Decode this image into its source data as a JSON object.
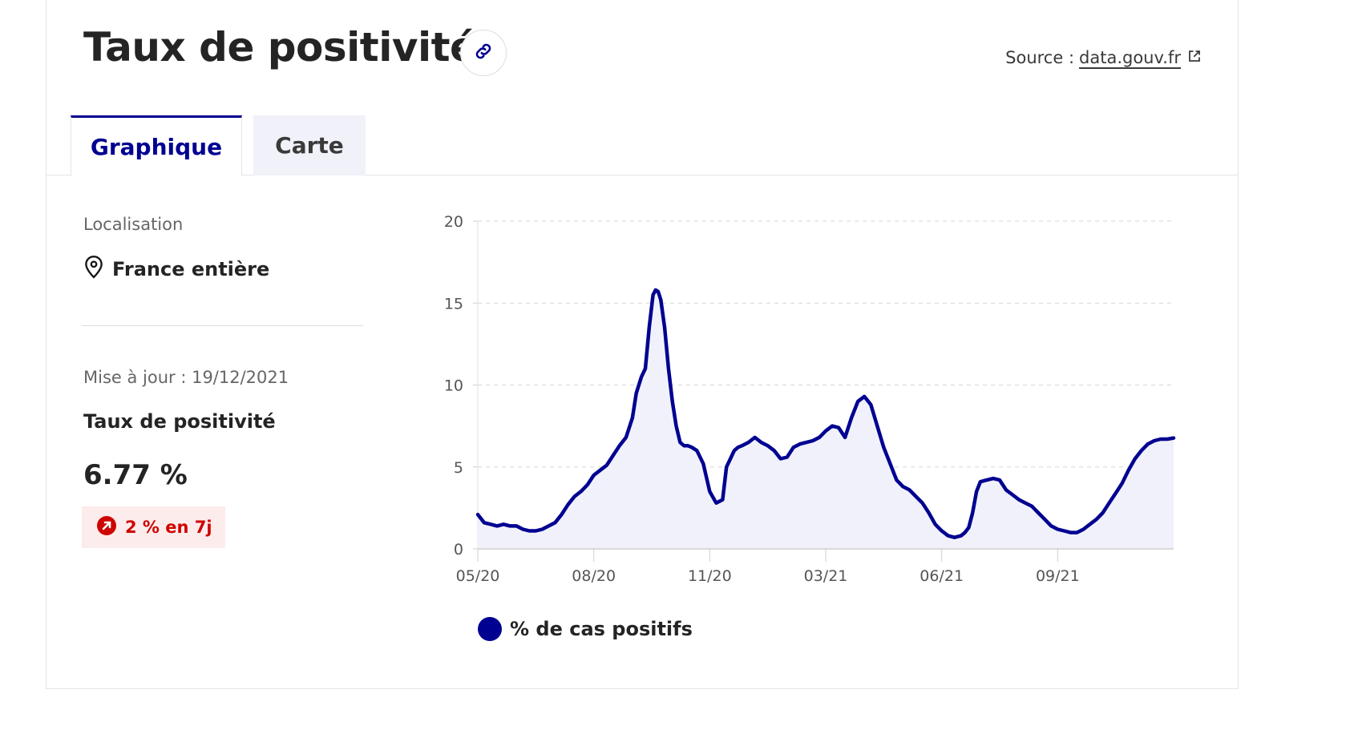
{
  "header": {
    "title": "Taux de positivité",
    "source_label": "Source :",
    "source_link": "data.gouv.fr",
    "link_icon": "link-icon",
    "external_icon": "external-link-icon"
  },
  "tabs": [
    {
      "label": "Graphique",
      "active": true
    },
    {
      "label": "Carte",
      "active": false
    }
  ],
  "sidebar": {
    "location_label": "Localisation",
    "location_value": "France entière",
    "location_icon": "map-pin-icon",
    "updated": "Mise à jour : 19/12/2021",
    "metric_title": "Taux de positivité",
    "metric_value": "6.77 %",
    "trend_text": "2 % en 7j",
    "trend_icon": "arrow-up-right-icon"
  },
  "colors": {
    "primary": "#000091",
    "trend_bg": "#fdecec",
    "trend_text": "#ce0500",
    "area_fill": "#f1f1fb"
  },
  "chart_data": {
    "type": "area",
    "ylim": [
      0,
      20
    ],
    "yticks": [
      0,
      5,
      10,
      15,
      20
    ],
    "xtick_labels": [
      "05/20",
      "08/20",
      "11/20",
      "03/21",
      "06/21",
      "09/21"
    ],
    "xtick_index": [
      0,
      90,
      180,
      270,
      360,
      450
    ],
    "x_range": [
      0,
      540
    ],
    "grid": true,
    "legend": "bottom",
    "series": [
      {
        "name": "% de cas positifs",
        "x": [
          0,
          5,
          10,
          15,
          20,
          25,
          30,
          35,
          40,
          45,
          50,
          55,
          60,
          65,
          70,
          75,
          80,
          85,
          90,
          95,
          100,
          105,
          110,
          115,
          120,
          123,
          127,
          130,
          133,
          136,
          138,
          140,
          142,
          145,
          148,
          151,
          154,
          157,
          160,
          163,
          166,
          170,
          175,
          180,
          185,
          190,
          193,
          196,
          199,
          202,
          205,
          210,
          215,
          220,
          225,
          230,
          235,
          240,
          245,
          250,
          255,
          260,
          265,
          270,
          275,
          280,
          285,
          290,
          295,
          300,
          305,
          310,
          315,
          320,
          325,
          330,
          335,
          340,
          345,
          350,
          355,
          360,
          365,
          370,
          375,
          378,
          381,
          384,
          387,
          390,
          395,
          400,
          405,
          410,
          415,
          420,
          425,
          430,
          435,
          440,
          445,
          450,
          455,
          460,
          465,
          470,
          475,
          480,
          485,
          490,
          495,
          500,
          505,
          510,
          515,
          520,
          525,
          530,
          535,
          540
        ],
        "values": [
          2.1,
          1.6,
          1.5,
          1.4,
          1.5,
          1.4,
          1.4,
          1.2,
          1.1,
          1.1,
          1.2,
          1.4,
          1.6,
          2.1,
          2.7,
          3.2,
          3.5,
          3.9,
          4.5,
          4.8,
          5.1,
          5.7,
          6.3,
          6.8,
          8.0,
          9.5,
          10.5,
          11.0,
          13.5,
          15.5,
          15.8,
          15.7,
          15.2,
          13.5,
          11.0,
          9.0,
          7.5,
          6.5,
          6.3,
          6.3,
          6.2,
          6.0,
          5.2,
          3.5,
          2.8,
          3.0,
          5.0,
          5.5,
          6.0,
          6.2,
          6.3,
          6.5,
          6.8,
          6.5,
          6.3,
          6.0,
          5.5,
          5.6,
          6.2,
          6.4,
          6.5,
          6.6,
          6.8,
          7.2,
          7.5,
          7.4,
          6.8,
          8.0,
          9.0,
          9.3,
          8.8,
          7.5,
          6.2,
          5.2,
          4.2,
          3.8,
          3.6,
          3.2,
          2.8,
          2.2,
          1.5,
          1.1,
          0.8,
          0.7,
          0.8,
          1.0,
          1.3,
          2.2,
          3.5,
          4.1,
          4.2,
          4.3,
          4.2,
          3.6,
          3.3,
          3.0,
          2.8,
          2.6,
          2.2,
          1.8,
          1.4,
          1.2,
          1.1,
          1.0,
          1.0,
          1.2,
          1.5,
          1.8,
          2.2,
          2.8,
          3.4,
          4.0,
          4.8,
          5.5,
          6.0,
          6.4,
          6.6,
          6.7,
          6.7,
          6.77
        ]
      }
    ]
  }
}
